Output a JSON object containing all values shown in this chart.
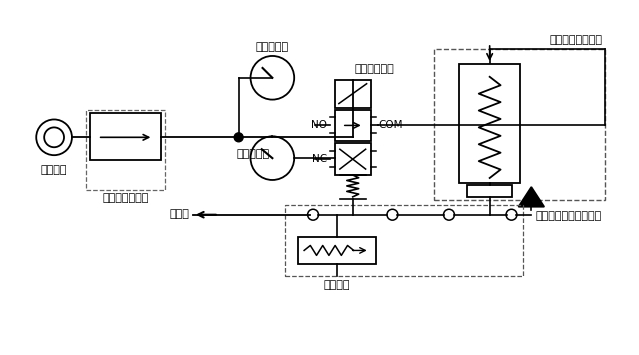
{
  "background_color": "#ffffff",
  "line_color": "#000000",
  "dashed_color": "#555555",
  "labels": {
    "air_source": "エアー源",
    "regulator": "レギュレーター",
    "air_pressure_gauge": "空気圧力計",
    "discharge_pressure_gauge": "吐出圧力計",
    "three_way_valve": "三方向電磁弁",
    "air_driven_pump": "エアー駆動ポンプ",
    "discharge_port": "吐出口",
    "release_mechanism": "解放機構",
    "suction_filter": "サクションフィルター",
    "NO": "NO",
    "NC": "NC",
    "COM": "COM"
  }
}
